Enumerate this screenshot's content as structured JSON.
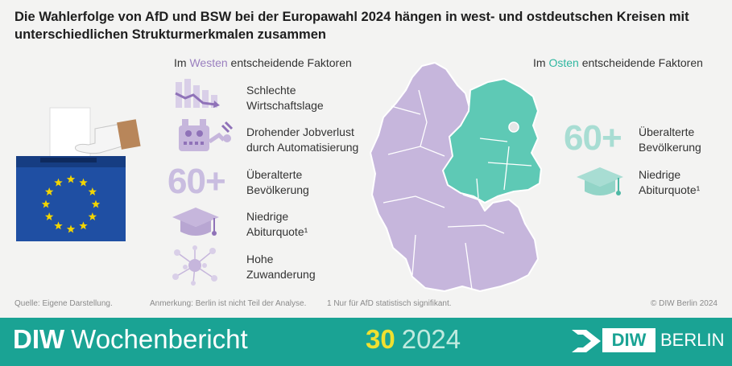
{
  "title": "Die Wahlerfolge von AfD und BSW bei der Europawahl 2024 hängen in west- und ostdeutschen Kreisen mit unterschiedlichen Strukturmerkmalen zusammen",
  "west": {
    "heading_prefix": "Im ",
    "heading_highlight": "Westen",
    "heading_suffix": " entscheidende Faktoren",
    "big_number": "60+",
    "factors": [
      {
        "icon": "declining-chart-icon",
        "line1": "Schlechte",
        "line2": "Wirtschaftslage"
      },
      {
        "icon": "robot-icon",
        "line1": "Drohender Jobverlust",
        "line2": "durch Automatisierung"
      },
      {
        "icon": "sixty-plus-icon",
        "line1": "Überalterte",
        "line2": "Bevölkerung"
      },
      {
        "icon": "graduation-cap-icon",
        "line1": "Niedrige",
        "line2": "Abiturquote¹"
      },
      {
        "icon": "migration-network-icon",
        "line1": "Hohe",
        "line2": "Zuwanderung"
      }
    ]
  },
  "east": {
    "heading_prefix": "Im ",
    "heading_highlight": "Osten",
    "heading_suffix": " entscheidende Faktoren",
    "big_number": "60+",
    "factors": [
      {
        "icon": "sixty-plus-icon",
        "line1": "Überalterte",
        "line2": "Bevölkerung"
      },
      {
        "icon": "graduation-cap-icon",
        "line1": "Niedrige",
        "line2": "Abiturquote¹"
      }
    ]
  },
  "colors": {
    "west": "#c6b6dc",
    "east": "#5ec9b5",
    "eu_blue": "#1f4fa3",
    "eu_star": "#f3d500",
    "footer_band": "#1aa394"
  },
  "notes": {
    "source": "Quelle: Eigene Darstellung.",
    "annotation": "Anmerkung: Berlin ist nicht Teil der Analyse.",
    "footnote": "1  Nur für AfD statistisch signifikant.",
    "copyright": "© DIW Berlin 2024"
  },
  "footer": {
    "brand_bold": "DIW",
    "brand_regular": "Wochenbericht",
    "issue_number": "30",
    "issue_year": "2024",
    "logo_box": "DIW",
    "logo_text": "BERLIN"
  }
}
